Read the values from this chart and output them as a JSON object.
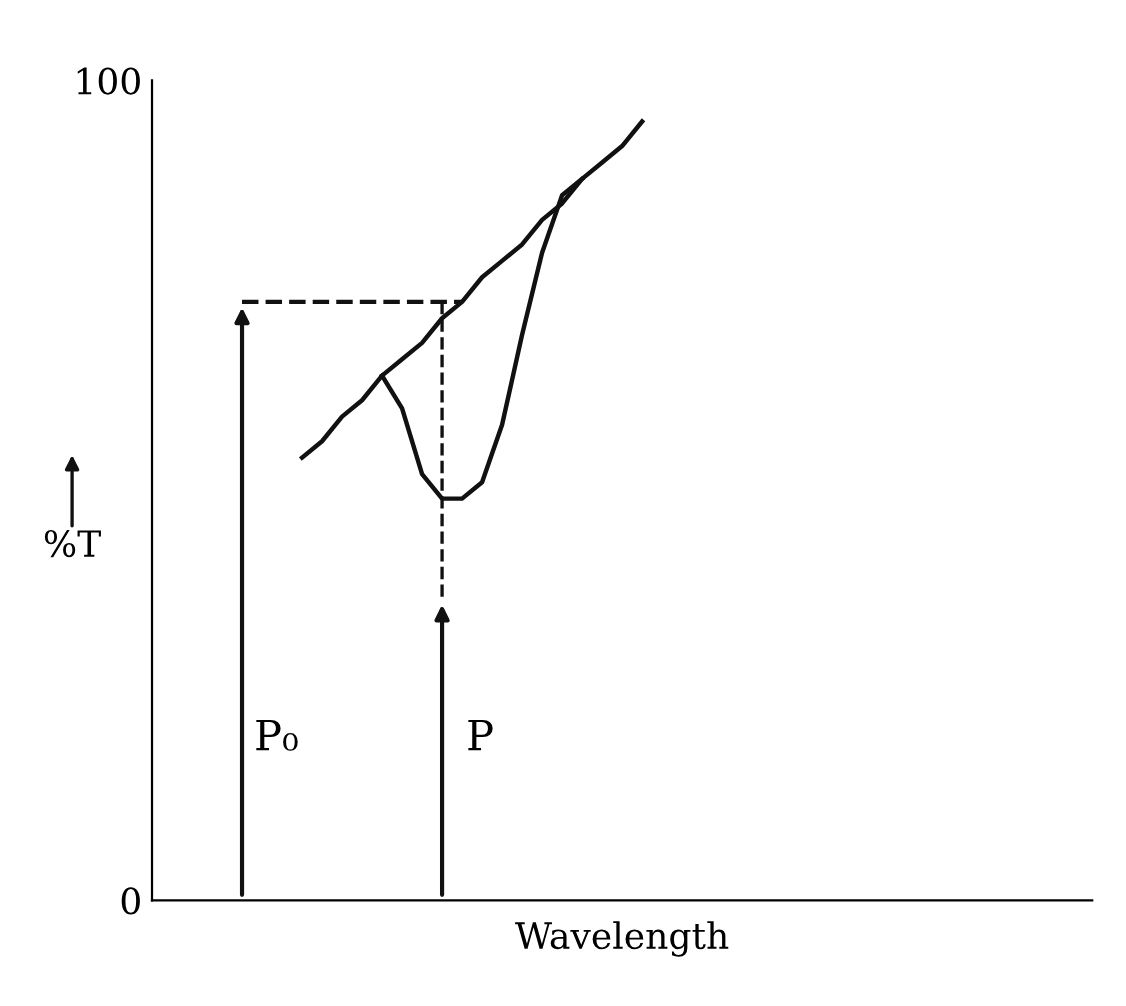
{
  "chart_data": {
    "type": "line",
    "xlabel": "Wavelength",
    "ylabel": "%T",
    "categories": [
      null,
      null,
      null,
      null,
      null,
      null,
      null,
      null,
      null,
      null,
      null,
      null,
      null,
      null,
      null,
      null,
      null,
      null,
      null,
      null,
      null,
      null,
      null,
      null,
      null,
      null,
      null,
      null,
      null,
      null,
      null,
      null,
      null,
      null,
      null,
      null,
      null,
      null,
      null,
      null,
      null,
      null,
      null,
      null,
      null,
      null,
      null
    ],
    "ylim": [
      0,
      100
    ],
    "yticks": [
      0,
      100
    ],
    "grid": false,
    "legend": false,
    "marker": "none",
    "series": [
      {
        "color": "#111111",
        "line_style": "solid",
        "values": [
          null,
          null,
          null,
          null,
          null,
          null,
          null,
          54,
          56,
          59,
          61,
          64,
          66,
          68,
          71,
          73,
          76,
          78,
          80,
          83,
          85,
          88,
          90,
          92,
          95,
          null,
          null,
          null,
          null,
          null,
          null,
          null,
          null,
          null,
          null,
          null,
          null,
          null,
          null,
          null,
          null,
          null,
          null,
          null,
          null,
          null,
          null
        ]
      },
      {
        "color": "#111111",
        "line_style": "solid",
        "values": [
          null,
          null,
          null,
          null,
          null,
          null,
          null,
          null,
          null,
          null,
          null,
          64,
          60,
          52,
          49,
          49,
          51,
          58,
          69,
          79,
          86,
          88,
          null,
          null,
          null,
          null,
          null,
          null,
          null,
          null,
          null,
          null,
          null,
          null,
          null,
          null,
          null,
          null,
          null,
          null,
          null,
          null,
          null,
          null,
          null,
          null,
          null
        ]
      },
      {
        "color": "#111111",
        "line_style": "dashed",
        "values": [
          null,
          null,
          null,
          null,
          73,
          73,
          73,
          73,
          73,
          73,
          73,
          73,
          73,
          73,
          73,
          73,
          null,
          null,
          null,
          null,
          null,
          null,
          null,
          null,
          null,
          null,
          null,
          null,
          null,
          null,
          null,
          null,
          null,
          null,
          null,
          null,
          null,
          null,
          null,
          null,
          null,
          null,
          null,
          null,
          null,
          null,
          null
        ]
      }
    ],
    "annotations": [
      "P₀",
      "P"
    ]
  }
}
